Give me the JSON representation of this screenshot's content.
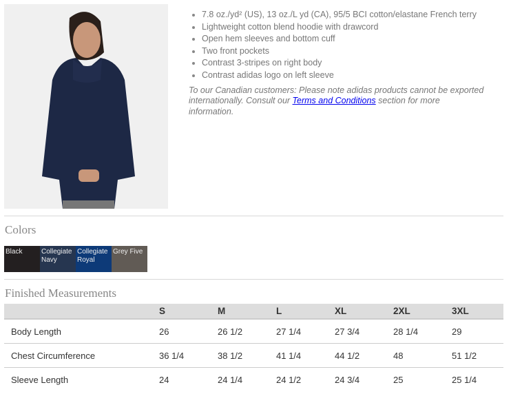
{
  "product": {
    "image_alt": "Woman wearing collegiate navy adidas hoodie",
    "features": [
      "7.8 oz./yd² (US), 13 oz./L yd (CA), 95/5 BCI cotton/elastane French terry",
      "Lightweight cotton blend hoodie with drawcord",
      "Open hem sleeves and bottom cuff",
      "Two front pockets",
      "Contrast 3-stripes on right body",
      "Contrast adidas logo on left sleeve"
    ],
    "note_before": "To our Canadian customers: Please note adidas products cannot be exported internationally. Consult our ",
    "note_link": "Terms and Conditions",
    "note_after": " section for more information."
  },
  "colors": {
    "title": "Colors",
    "swatches": [
      {
        "name": "Black",
        "hex": "#231f20"
      },
      {
        "name": "Collegiate Navy",
        "hex": "#263650"
      },
      {
        "name": "Collegiate Royal",
        "hex": "#0d3a78"
      },
      {
        "name": "Grey Five",
        "hex": "#615b55"
      }
    ]
  },
  "measurements": {
    "title": "Finished Measurements",
    "sizes": [
      "S",
      "M",
      "L",
      "XL",
      "2XL",
      "3XL"
    ],
    "rows": [
      {
        "label": "Body Length",
        "values": [
          "26",
          "26 1/2",
          "27 1/4",
          "27 3/4",
          "28 1/4",
          "29"
        ]
      },
      {
        "label": "Chest Circumference",
        "values": [
          "36 1/4",
          "38 1/2",
          "41 1/4",
          "44 1/2",
          "48",
          "51 1/2"
        ]
      },
      {
        "label": "Sleeve Length",
        "values": [
          "24",
          "24 1/4",
          "24 1/2",
          "24 3/4",
          "25",
          "25 1/4"
        ]
      }
    ]
  }
}
